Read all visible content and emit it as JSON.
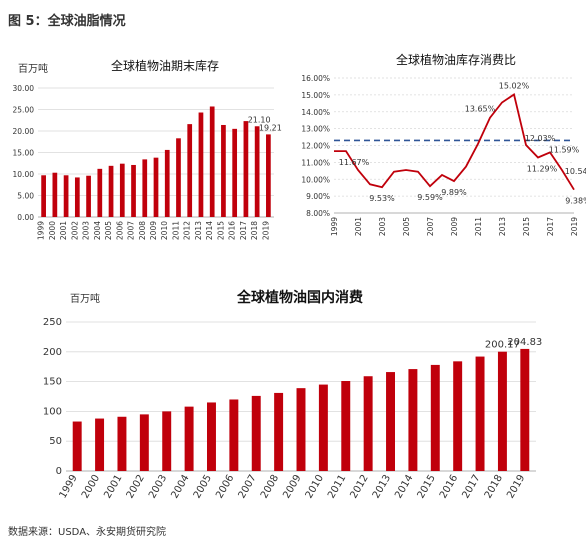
{
  "figure_title": "图 5：全球油脂情况",
  "source": "数据来源：USDA、永安期货研究院",
  "colors": {
    "bar": "#c0000b",
    "line": "#c0000b",
    "avg": "#2f5597",
    "grid": "#d9d9d9"
  },
  "chart_data": [
    {
      "type": "bar",
      "title": "全球植物油期末库存",
      "unit": "百万吨",
      "ylim": [
        0,
        30
      ],
      "yticks": [
        "0.00",
        "5.00",
        "10.00",
        "15.00",
        "20.00",
        "25.00",
        "30.00"
      ],
      "categories": [
        "1999",
        "2000",
        "2001",
        "2002",
        "2003",
        "2004",
        "2005",
        "2006",
        "2007",
        "2008",
        "2009",
        "2010",
        "2011",
        "2012",
        "2013",
        "2014",
        "2015",
        "2016",
        "2017",
        "2018",
        "2019"
      ],
      "values": [
        9.7,
        10.3,
        9.7,
        9.2,
        9.6,
        11.2,
        11.9,
        12.4,
        12.1,
        13.4,
        13.8,
        15.6,
        18.3,
        21.6,
        24.3,
        25.7,
        21.4,
        20.5,
        22.3,
        21.1,
        19.21
      ],
      "data_labels": [
        {
          "index": 19,
          "text": "21.10"
        },
        {
          "index": 20,
          "text": "19.21"
        }
      ],
      "grid": true
    },
    {
      "type": "line",
      "title": "全球植物油库存消费比",
      "ylim": [
        8,
        16
      ],
      "yticks": [
        "8.00%",
        "9.00%",
        "10.00%",
        "11.00%",
        "12.00%",
        "13.00%",
        "14.00%",
        "15.00%",
        "16.00%"
      ],
      "x": [
        "1999",
        "2000",
        "2001",
        "2002",
        "2003",
        "2004",
        "2005",
        "2006",
        "2007",
        "2008",
        "2009",
        "2010",
        "2011",
        "2012",
        "2013",
        "2014",
        "2015",
        "2016",
        "2017",
        "2018",
        "2019"
      ],
      "xtick_labels": [
        "1999",
        "2001",
        "2003",
        "2005",
        "2007",
        "2009",
        "2011",
        "2013",
        "2015",
        "2017",
        "2019"
      ],
      "values": [
        11.67,
        11.67,
        10.55,
        9.7,
        9.53,
        10.45,
        10.55,
        10.45,
        9.59,
        10.25,
        9.89,
        10.75,
        12.1,
        13.65,
        14.55,
        15.02,
        12.03,
        11.29,
        11.59,
        10.54,
        9.38
      ],
      "reference_line": 12.3,
      "data_labels": [
        {
          "index": 1,
          "text": "11.67%"
        },
        {
          "index": 4,
          "text": "9.53%"
        },
        {
          "index": 8,
          "text": "9.59%"
        },
        {
          "index": 10,
          "text": "9.89%"
        },
        {
          "index": 13,
          "text": "13.65%"
        },
        {
          "index": 15,
          "text": "15.02%"
        },
        {
          "index": 16,
          "text": "12.03%"
        },
        {
          "index": 17,
          "text": "11.29%"
        },
        {
          "index": 18,
          "text": "11.59%"
        },
        {
          "index": 19,
          "text": "10.54%"
        },
        {
          "index": 20,
          "text": "9.38%"
        }
      ],
      "grid": true
    },
    {
      "type": "bar",
      "title": "全球植物油国内消费",
      "unit": "百万吨",
      "ylim": [
        0,
        250
      ],
      "yticks": [
        "0",
        "50",
        "100",
        "150",
        "200",
        "250"
      ],
      "categories": [
        "1999",
        "2000",
        "2001",
        "2002",
        "2003",
        "2004",
        "2005",
        "2006",
        "2007",
        "2008",
        "2009",
        "2010",
        "2011",
        "2012",
        "2013",
        "2014",
        "2015",
        "2016",
        "2017",
        "2018",
        "2019"
      ],
      "values": [
        83,
        88,
        91,
        95,
        100,
        108,
        115,
        120,
        126,
        131,
        139,
        145,
        151,
        159,
        166,
        171,
        178,
        184,
        192,
        200.17,
        204.83
      ],
      "data_labels": [
        {
          "index": 19,
          "text": "200.17"
        },
        {
          "index": 20,
          "text": "204.83"
        }
      ],
      "grid": true
    }
  ]
}
